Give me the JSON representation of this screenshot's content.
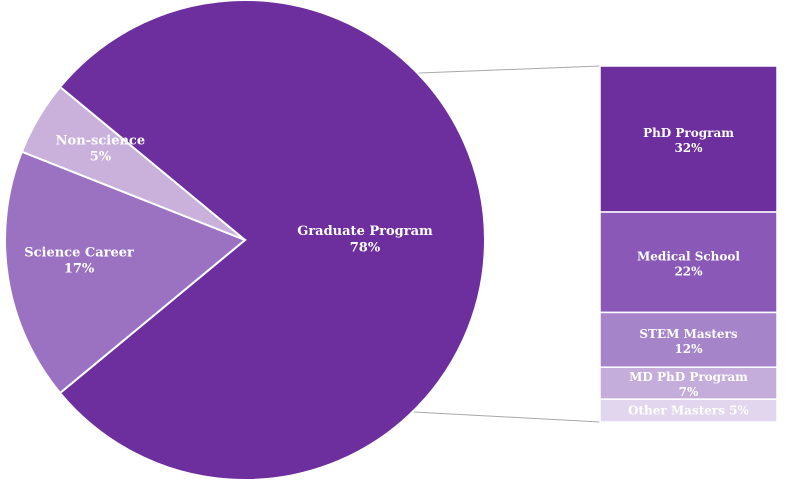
{
  "chart_data": [
    {
      "type": "pie",
      "slices": [
        {
          "label": "Graduate Program",
          "value": 78,
          "value_label": "78%",
          "color": "#6d2f9e"
        },
        {
          "label": "Science Career",
          "value": 17,
          "value_label": "17%",
          "color": "#9b72c2"
        },
        {
          "label": "Non-science",
          "value": 5,
          "value_label": "5%",
          "color": "#c9b1dc"
        }
      ],
      "exploded_slice": "Graduate Program"
    },
    {
      "type": "bar",
      "stacked": true,
      "orientation": "vertical",
      "breakdown_of": "Graduate Program",
      "segments": [
        {
          "label": "PhD Program",
          "value": 32,
          "value_label": "32%",
          "color": "#6d2f9e"
        },
        {
          "label": "Medical School",
          "value": 22,
          "value_label": "22%",
          "color": "#8a59b8"
        },
        {
          "label": "STEM Masters",
          "value": 12,
          "value_label": "12%",
          "color": "#a684c9"
        },
        {
          "label": "MD PhD Program",
          "value": 7,
          "value_label": "7%",
          "color": "#c4acdb"
        },
        {
          "label": "Other Masters",
          "value": 5,
          "value_label": "5%",
          "color": "#e2d6ee"
        }
      ]
    }
  ]
}
